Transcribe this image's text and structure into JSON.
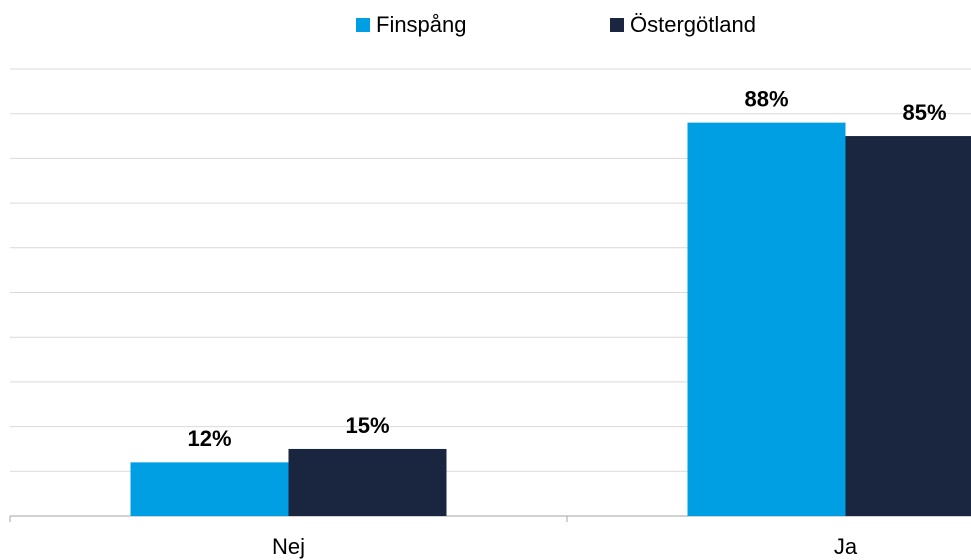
{
  "chart_data": {
    "type": "bar",
    "categories": [
      "Nej",
      "Ja"
    ],
    "series": [
      {
        "name": "Finspång",
        "color": "#009fe3",
        "values": [
          12,
          88
        ],
        "value_labels": [
          "12%",
          "88%"
        ]
      },
      {
        "name": "Östergötland",
        "color": "#1a2540",
        "values": [
          15,
          85
        ],
        "value_labels": [
          "15%",
          "85%"
        ]
      }
    ],
    "ylim": [
      0,
      100
    ],
    "yticks": [
      0,
      10,
      20,
      30,
      40,
      50,
      60,
      70,
      80,
      90,
      100
    ],
    "grid": true,
    "legend": "top"
  }
}
